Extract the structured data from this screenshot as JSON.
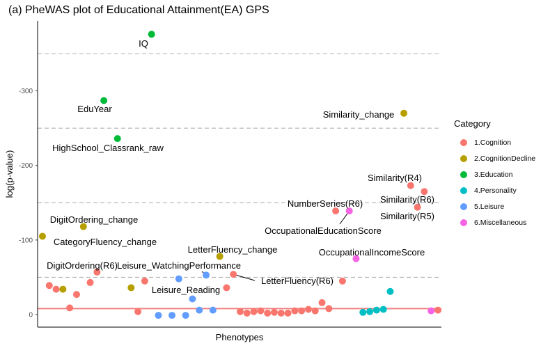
{
  "chart_data": {
    "type": "scatter",
    "title": "(a) PheWAS plot of Educational Attainment(EA) GPS",
    "xlabel": "Phenotypes",
    "ylabel": "log(p-value)",
    "y_axis_reversed": true,
    "ylim": [
      0,
      -395
    ],
    "y_ticks": [
      {
        "value": 0,
        "label": "0"
      },
      {
        "value": -100,
        "label": "-100"
      },
      {
        "value": -200,
        "label": "-200"
      },
      {
        "value": -300,
        "label": "-300"
      }
    ],
    "dashed_reference_lines": [
      -50,
      -150,
      -250,
      -350
    ],
    "significance_line": -8,
    "grid": false,
    "legend_title": "Category",
    "legend_position": "right",
    "categories": [
      {
        "name": "1.Cognition",
        "color": "#F8766D"
      },
      {
        "name": "2.CognitionDecline",
        "color": "#B79F00"
      },
      {
        "name": "3.Education",
        "color": "#00BA38"
      },
      {
        "name": "4.Personality",
        "color": "#00BFC4"
      },
      {
        "name": "5.Leisure",
        "color": "#619CFF"
      },
      {
        "name": "6.Miscellaneous",
        "color": "#F564E3"
      }
    ],
    "points": [
      {
        "x": 1,
        "y": -105,
        "cat": 1,
        "label": "CategoryFluency_change"
      },
      {
        "x": 2,
        "y": -39,
        "cat": 0
      },
      {
        "x": 3,
        "y": -34,
        "cat": 0
      },
      {
        "x": 4,
        "y": -34,
        "cat": 1
      },
      {
        "x": 5,
        "y": -9,
        "cat": 0
      },
      {
        "x": 6,
        "y": -27,
        "cat": 0
      },
      {
        "x": 7,
        "y": -118,
        "cat": 1,
        "label": "DigitOrdering_change"
      },
      {
        "x": 8,
        "y": -43,
        "cat": 0
      },
      {
        "x": 9,
        "y": -57,
        "cat": 0,
        "label": "DigitOrdering(R6)"
      },
      {
        "x": 10,
        "y": -287,
        "cat": 2,
        "label": "EduYear"
      },
      {
        "x": 12,
        "y": -236,
        "cat": 2,
        "label": "HighSchool_Classrank_raw"
      },
      {
        "x": 14,
        "y": -36,
        "cat": 1
      },
      {
        "x": 15,
        "y": -4,
        "cat": 0
      },
      {
        "x": 16,
        "y": -45,
        "cat": 0
      },
      {
        "x": 17,
        "y": -376,
        "cat": 2,
        "label": "IQ"
      },
      {
        "x": 18,
        "y": 1,
        "cat": 4
      },
      {
        "x": 20,
        "y": 1,
        "cat": 4
      },
      {
        "x": 21,
        "y": -48,
        "cat": 4
      },
      {
        "x": 22,
        "y": 1,
        "cat": 4
      },
      {
        "x": 23,
        "y": -21,
        "cat": 4,
        "label": "Leisure_Reading"
      },
      {
        "x": 24,
        "y": -6,
        "cat": 4
      },
      {
        "x": 25,
        "y": -53,
        "cat": 4,
        "label": "Leisure_WatchingPerformance"
      },
      {
        "x": 26,
        "y": -6,
        "cat": 4
      },
      {
        "x": 27,
        "y": -78,
        "cat": 1,
        "label": "LetterFluency_change"
      },
      {
        "x": 28,
        "y": -36,
        "cat": 0
      },
      {
        "x": 29,
        "y": -54,
        "cat": 0,
        "label": "LetterFluency(R6)"
      },
      {
        "x": 30,
        "y": -4,
        "cat": 0
      },
      {
        "x": 31,
        "y": -2,
        "cat": 0
      },
      {
        "x": 32,
        "y": -4,
        "cat": 0
      },
      {
        "x": 33,
        "y": -5,
        "cat": 0
      },
      {
        "x": 34,
        "y": -2,
        "cat": 0
      },
      {
        "x": 35,
        "y": -3,
        "cat": 0
      },
      {
        "x": 36,
        "y": -2,
        "cat": 0
      },
      {
        "x": 37,
        "y": -2,
        "cat": 0
      },
      {
        "x": 38,
        "y": -5,
        "cat": 0
      },
      {
        "x": 39,
        "y": -5,
        "cat": 0
      },
      {
        "x": 40,
        "y": -7,
        "cat": 0
      },
      {
        "x": 41,
        "y": -5,
        "cat": 0
      },
      {
        "x": 42,
        "y": -16,
        "cat": 0
      },
      {
        "x": 43,
        "y": -8,
        "cat": 0
      },
      {
        "x": 44,
        "y": -139,
        "cat": 0,
        "label": "NumberSeries(R6)"
      },
      {
        "x": 45,
        "y": -45,
        "cat": 0
      },
      {
        "x": 46,
        "y": -139,
        "cat": 5,
        "label": "OccupationalEducationScore"
      },
      {
        "x": 47,
        "y": -75,
        "cat": 5,
        "label": "OccupationalIncomeScore"
      },
      {
        "x": 48,
        "y": -3,
        "cat": 3
      },
      {
        "x": 49,
        "y": -4,
        "cat": 3
      },
      {
        "x": 50,
        "y": -6,
        "cat": 3
      },
      {
        "x": 51,
        "y": -7,
        "cat": 3
      },
      {
        "x": 52,
        "y": -31,
        "cat": 3
      },
      {
        "x": 54,
        "y": -270,
        "cat": 1,
        "label": "Similarity_change"
      },
      {
        "x": 55,
        "y": -173,
        "cat": 0,
        "label": "Similarity(R4)"
      },
      {
        "x": 56,
        "y": -144,
        "cat": 0,
        "label": "Similarity(R5)"
      },
      {
        "x": 57,
        "y": -165,
        "cat": 0,
        "label": "Similarity(R6)"
      },
      {
        "x": 58,
        "y": -5,
        "cat": 5
      },
      {
        "x": 59,
        "y": -6,
        "cat": 0
      }
    ]
  }
}
